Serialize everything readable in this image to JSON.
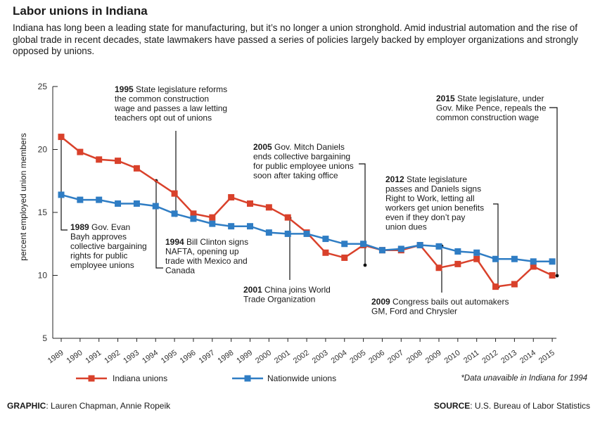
{
  "header": {
    "title": "Labor unions in Indiana",
    "subtitle": "Indiana has long been a leading state for manufacturing, but it’s no longer a union stronghold. Amid industrial automation and the rise of global trade in recent decades, state lawmakers have passed a series of policies largely backed by employer organizations and strongly opposed by unions."
  },
  "chart_data": {
    "type": "line",
    "ylabel": "percent employed union members",
    "xlabel": "",
    "ylim": [
      5,
      25
    ],
    "yticks": [
      5,
      10,
      15,
      20,
      25
    ],
    "x": [
      1989,
      1990,
      1991,
      1992,
      1993,
      1994,
      1995,
      1996,
      1997,
      1998,
      1999,
      2000,
      2001,
      2002,
      2003,
      2004,
      2005,
      2006,
      2007,
      2008,
      2009,
      2010,
      2011,
      2012,
      2013,
      2014,
      2015
    ],
    "series": [
      {
        "name": "Indiana unions",
        "color": "#d9412b",
        "values": [
          21.0,
          19.8,
          19.2,
          19.1,
          18.5,
          null,
          16.5,
          14.9,
          14.6,
          16.2,
          15.7,
          15.4,
          14.6,
          13.4,
          11.8,
          11.4,
          12.4,
          12.0,
          12.0,
          12.4,
          10.6,
          10.9,
          11.3,
          9.1,
          9.3,
          10.7,
          10.0
        ]
      },
      {
        "name": "Nationwide unions",
        "color": "#2f7dc4",
        "values": [
          16.4,
          16.0,
          16.0,
          15.7,
          15.7,
          15.5,
          14.9,
          14.5,
          14.1,
          13.9,
          13.9,
          13.4,
          13.3,
          13.3,
          12.9,
          12.5,
          12.5,
          12.0,
          12.1,
          12.4,
          12.3,
          11.9,
          11.8,
          11.3,
          11.3,
          11.1,
          11.1
        ]
      }
    ],
    "annotations": [
      {
        "year": "1989",
        "text": [
          "Gov. Evan",
          "Bayh approves",
          "collective bargaining",
          "rights for public",
          "employee unions"
        ]
      },
      {
        "year": "1995",
        "text": [
          "State legislature reforms",
          "the common construction",
          "wage and passes a law letting",
          "teachers opt out of unions"
        ]
      },
      {
        "year": "1994",
        "text": [
          "Bill Clinton signs",
          "NAFTA, opening up",
          "trade with Mexico and",
          "Canada"
        ]
      },
      {
        "year": "2001",
        "text": [
          "China joins World",
          "Trade Organization"
        ]
      },
      {
        "year": "2005",
        "text": [
          "Gov. Mitch Daniels",
          "ends collective bargaining",
          "for public employee unions",
          "soon after taking office"
        ]
      },
      {
        "year": "2009",
        "text": [
          "Congress bails out automakers",
          "GM, Ford and Chrysler"
        ]
      },
      {
        "year": "2012",
        "text": [
          "State legislature",
          "passes and Daniels signs",
          "Right to Work, letting all",
          "workers get union benefits",
          "even if they don’t pay",
          "union dues"
        ]
      },
      {
        "year": "2015",
        "text": [
          "State legislature, under",
          "Gov. Mike Pence, repeals the",
          "common construction wage"
        ]
      }
    ],
    "note": "*Data unavaible in Indiana for 1994"
  },
  "footer": {
    "graphic_label": "GRAPHIC",
    "graphic_text": ": Lauren Chapman, Annie Ropeik",
    "source_label": "SOURCE",
    "source_text": ": U.S. Bureau of Labor Statistics"
  }
}
